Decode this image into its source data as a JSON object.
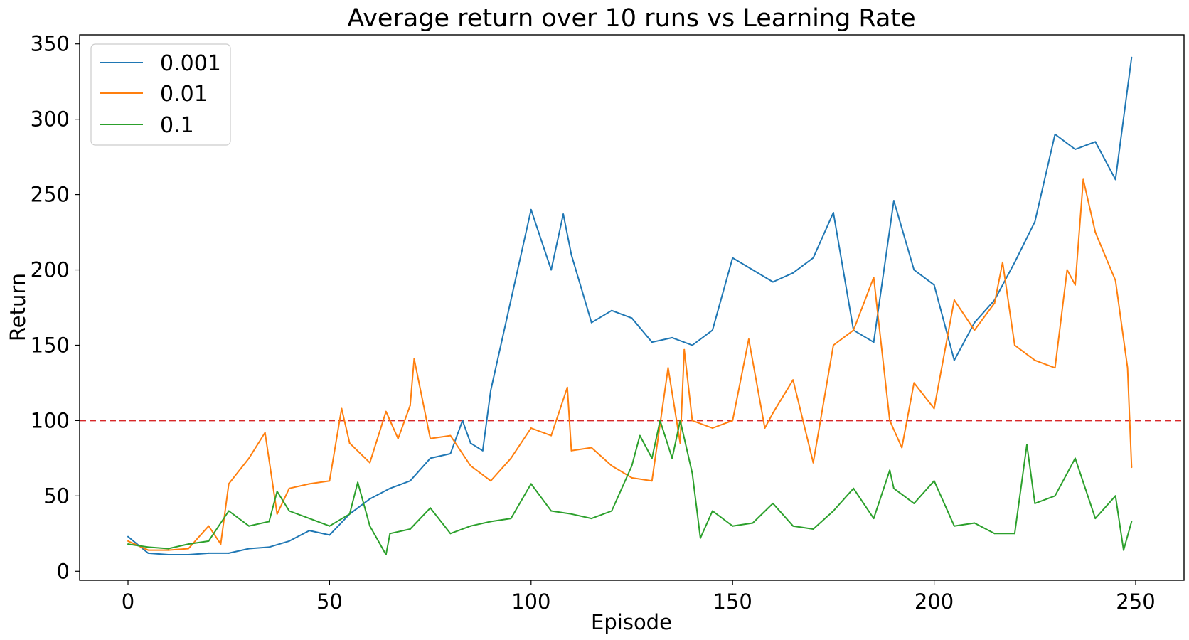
{
  "chart_data": {
    "type": "line",
    "title": "Average return over 10 runs vs Learning Rate",
    "xlabel": "Episode",
    "ylabel": "Return",
    "xlim": [
      -12,
      262
    ],
    "ylim": [
      -6,
      356
    ],
    "xticks": [
      0,
      50,
      100,
      150,
      200,
      250
    ],
    "yticks": [
      0,
      50,
      100,
      150,
      200,
      250,
      300,
      350
    ],
    "grid": false,
    "legend_position": "top-left",
    "reference_line": {
      "y": 100,
      "color": "#d62728",
      "style": "dashed"
    },
    "series": [
      {
        "name": "0.001",
        "color": "#1f77b4",
        "x": [
          0,
          5,
          10,
          15,
          20,
          25,
          30,
          35,
          40,
          45,
          50,
          55,
          60,
          65,
          70,
          75,
          80,
          83,
          85,
          88,
          90,
          95,
          100,
          105,
          108,
          110,
          115,
          120,
          125,
          130,
          135,
          140,
          145,
          150,
          155,
          160,
          165,
          170,
          175,
          180,
          185,
          190,
          195,
          200,
          205,
          210,
          215,
          220,
          225,
          230,
          235,
          240,
          245,
          249
        ],
        "values": [
          23,
          12,
          11,
          11,
          12,
          12,
          15,
          16,
          20,
          27,
          24,
          38,
          48,
          55,
          60,
          75,
          78,
          100,
          85,
          80,
          120,
          180,
          240,
          200,
          237,
          210,
          165,
          173,
          168,
          152,
          155,
          150,
          160,
          208,
          200,
          192,
          198,
          208,
          238,
          160,
          152,
          246,
          200,
          190,
          140,
          165,
          180,
          205,
          232,
          290,
          280,
          285,
          260,
          341
        ]
      },
      {
        "name": "0.01",
        "color": "#ff7f0e",
        "x": [
          0,
          5,
          10,
          15,
          20,
          23,
          25,
          30,
          34,
          37,
          40,
          45,
          50,
          53,
          55,
          60,
          64,
          67,
          70,
          71,
          75,
          80,
          85,
          90,
          95,
          100,
          105,
          109,
          110,
          115,
          120,
          125,
          130,
          134,
          137,
          138,
          140,
          145,
          150,
          154,
          158,
          160,
          165,
          170,
          175,
          180,
          185,
          189,
          192,
          195,
          200,
          205,
          210,
          215,
          217,
          220,
          225,
          230,
          233,
          235,
          237,
          240,
          245,
          248,
          249
        ],
        "values": [
          20,
          14,
          14,
          15,
          30,
          18,
          58,
          75,
          92,
          38,
          55,
          58,
          60,
          108,
          85,
          72,
          106,
          88,
          110,
          141,
          88,
          90,
          70,
          60,
          75,
          95,
          90,
          122,
          80,
          82,
          70,
          62,
          60,
          135,
          85,
          147,
          100,
          95,
          100,
          154,
          95,
          105,
          127,
          72,
          150,
          160,
          195,
          100,
          82,
          125,
          108,
          180,
          160,
          178,
          205,
          150,
          140,
          135,
          200,
          190,
          260,
          225,
          193,
          135,
          69
        ]
      },
      {
        "name": "0.1",
        "color": "#2ca02c",
        "x": [
          0,
          5,
          10,
          15,
          20,
          25,
          30,
          35,
          37,
          40,
          45,
          50,
          55,
          57,
          60,
          64,
          65,
          70,
          75,
          80,
          85,
          90,
          95,
          100,
          105,
          110,
          115,
          120,
          125,
          127,
          130,
          132,
          135,
          137,
          140,
          142,
          145,
          150,
          155,
          160,
          165,
          170,
          175,
          180,
          185,
          189,
          190,
          195,
          200,
          205,
          210,
          215,
          220,
          223,
          225,
          230,
          235,
          240,
          245,
          247,
          249
        ],
        "values": [
          18,
          16,
          15,
          18,
          20,
          40,
          30,
          33,
          53,
          40,
          35,
          30,
          38,
          59,
          30,
          11,
          25,
          28,
          42,
          25,
          30,
          33,
          35,
          58,
          40,
          38,
          35,
          40,
          70,
          90,
          75,
          100,
          75,
          100,
          65,
          22,
          40,
          30,
          32,
          45,
          30,
          28,
          40,
          55,
          35,
          67,
          55,
          45,
          60,
          30,
          32,
          25,
          25,
          84,
          45,
          50,
          75,
          35,
          50,
          14,
          33
        ]
      }
    ]
  }
}
